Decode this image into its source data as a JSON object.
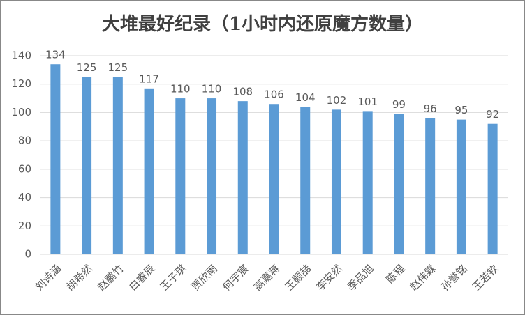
{
  "chart_data": {
    "type": "bar",
    "title": "大堆最好纪录（1小时内还原魔方数量）",
    "categories": [
      "刘诗涵",
      "胡希然",
      "赵鹏竹",
      "白睿辰",
      "王子琪",
      "贾欣雨",
      "何宇宸",
      "高嘉蒋",
      "王颢喆",
      "李安然",
      "季品旭",
      "陈程",
      "赵伟霖",
      "孙誉铭",
      "王若钦"
    ],
    "values": [
      134,
      125,
      125,
      117,
      110,
      110,
      108,
      106,
      104,
      102,
      101,
      99,
      96,
      95,
      92
    ],
    "color": "#5b9bd5",
    "ylim": [
      0,
      140
    ],
    "yticks": [
      0,
      20,
      40,
      60,
      80,
      100,
      120,
      140
    ],
    "grid": true
  }
}
